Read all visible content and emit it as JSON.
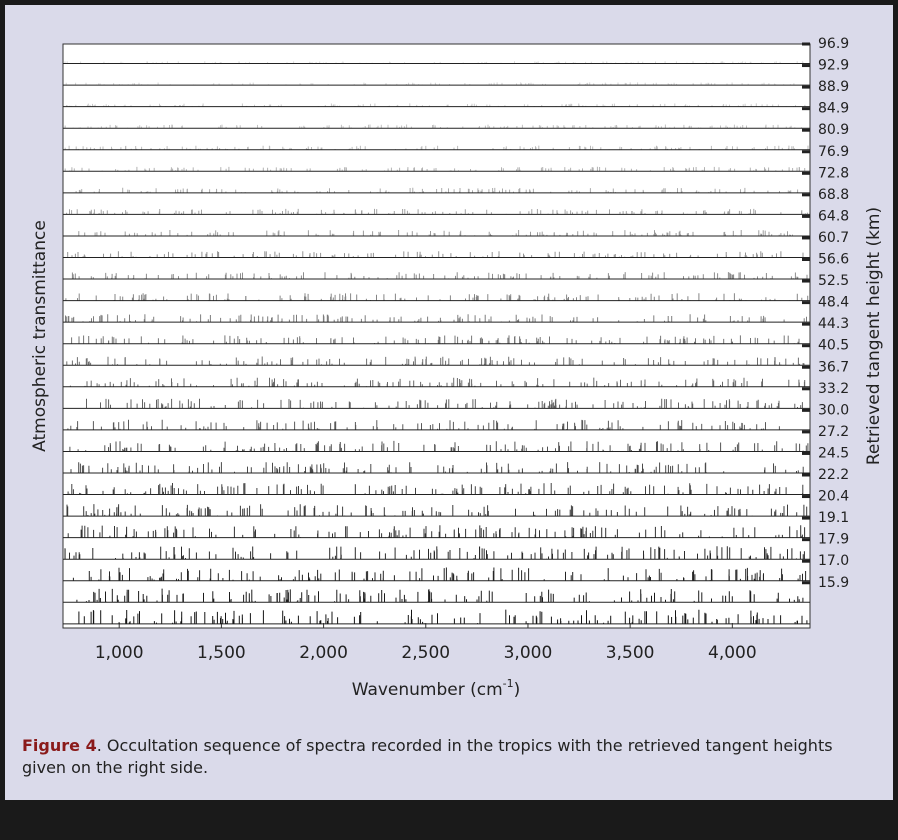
{
  "chart_data": {
    "type": "spectra",
    "ylabel": "Atmospheric transmittance",
    "y2label": "Retrieved tangent height (km)",
    "xlabel": {
      "text": "Wavenumber (cm",
      "sup": "-1",
      "end": ")"
    },
    "xlim": [
      725,
      4380
    ],
    "xticks": [
      {
        "value": 1000,
        "label": "1,000"
      },
      {
        "value": 1500,
        "label": "1,500"
      },
      {
        "value": 2000,
        "label": "2,000"
      },
      {
        "value": 2500,
        "label": "2,500"
      },
      {
        "value": 3000,
        "label": "3,000"
      },
      {
        "value": 3500,
        "label": "3,500"
      },
      {
        "value": 4000,
        "label": "4,000"
      }
    ],
    "categories": [
      "96.9",
      "92.9",
      "88.9",
      "84.9",
      "80.9",
      "76.9",
      "72.8",
      "68.8",
      "64.8",
      "60.7",
      "56.6",
      "52.5",
      "48.4",
      "44.3",
      "40.5",
      "36.7",
      "33.2",
      "30.0",
      "27.2",
      "24.5",
      "22.2",
      "20.4",
      "19.1",
      "17.9",
      "17.0",
      "15.9",
      null
    ]
  },
  "caption": {
    "label": "Figure 4",
    "text": ". Occultation sequence of spectra recorded in the tropics with the retrieved tangent heights given on the right side."
  }
}
